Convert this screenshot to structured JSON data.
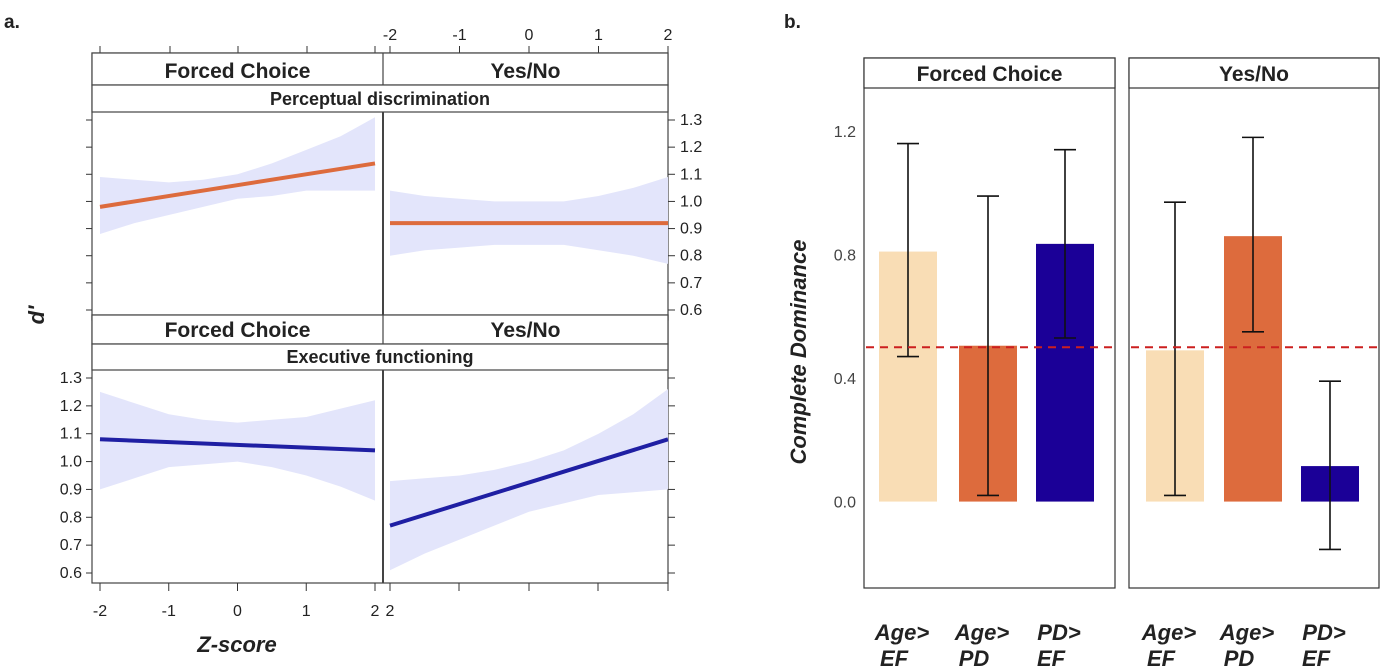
{
  "colors": {
    "orange": "#dd6b3d",
    "navy": "#1f1fa3",
    "navy_bar": "#1b0097",
    "peach": "#f9ddb5",
    "ci_fill": "#e3e5fb",
    "dashed": "#cc1f1f"
  },
  "chart_data": [
    {
      "panel_label": "a.",
      "type": "line",
      "ylabel": "d'",
      "xlabel": "Z-score",
      "x_ticks": [
        "-2",
        "-1",
        "0",
        "1",
        "2"
      ],
      "y_ticks": [
        "0.6",
        "0.7",
        "0.8",
        "0.9",
        "1.0",
        "1.1",
        "1.2",
        "1.3"
      ],
      "xlim": [
        -2,
        2
      ],
      "ylim": [
        0.6,
        1.3
      ],
      "facets": [
        {
          "name": "Forced Choice",
          "group": "Perceptual discrimination",
          "color": "orange",
          "x": [
            -2,
            2
          ],
          "y": [
            0.98,
            1.14
          ],
          "ci_upper": [
            1.09,
            1.08,
            1.07,
            1.08,
            1.1,
            1.14,
            1.19,
            1.24,
            1.31
          ],
          "ci_lower": [
            0.88,
            0.92,
            0.95,
            0.98,
            1.01,
            1.02,
            1.04,
            1.04,
            1.04
          ]
        },
        {
          "name": "Yes/No",
          "group": "Perceptual discrimination",
          "color": "orange",
          "x": [
            -2,
            2
          ],
          "y": [
            0.92,
            0.92
          ],
          "ci_upper": [
            1.04,
            1.02,
            1.01,
            1.0,
            1.0,
            1.0,
            1.02,
            1.05,
            1.09
          ],
          "ci_lower": [
            0.8,
            0.82,
            0.83,
            0.84,
            0.84,
            0.84,
            0.82,
            0.8,
            0.77
          ]
        },
        {
          "name": "Forced Choice",
          "group": "Executive functioning",
          "color": "navy",
          "x": [
            -2,
            2
          ],
          "y": [
            1.08,
            1.04
          ],
          "ci_upper": [
            1.25,
            1.21,
            1.17,
            1.15,
            1.14,
            1.15,
            1.16,
            1.19,
            1.22
          ],
          "ci_lower": [
            0.9,
            0.94,
            0.98,
            0.99,
            1.0,
            0.98,
            0.95,
            0.91,
            0.86
          ]
        },
        {
          "name": "Yes/No",
          "group": "Executive functioning",
          "color": "navy",
          "x": [
            -2,
            2
          ],
          "y": [
            0.77,
            1.08
          ],
          "ci_upper": [
            0.93,
            0.94,
            0.95,
            0.97,
            1.0,
            1.04,
            1.1,
            1.17,
            1.26
          ],
          "ci_lower": [
            0.61,
            0.67,
            0.72,
            0.77,
            0.82,
            0.85,
            0.88,
            0.89,
            0.9
          ]
        }
      ]
    },
    {
      "panel_label": "b.",
      "type": "bar",
      "ylabel": "Complete Dominance",
      "y_ticks": [
        "0.0",
        "0.4",
        "0.8",
        "1.2"
      ],
      "ylim": [
        -0.28,
        1.34
      ],
      "reference_line": 0.5,
      "facets": [
        {
          "name": "Forced Choice",
          "categories": [
            [
              "Age>",
              "EF"
            ],
            [
              "Age>",
              "PD"
            ],
            [
              "PD>",
              "EF"
            ]
          ],
          "values": [
            0.81,
            0.505,
            0.835
          ],
          "err_low": [
            0.47,
            0.02,
            0.53
          ],
          "err_high": [
            1.16,
            0.99,
            1.14
          ],
          "colors": [
            "peach",
            "orange",
            "navy_bar"
          ]
        },
        {
          "name": "Yes/No",
          "categories": [
            [
              "Age>",
              "EF"
            ],
            [
              "Age>",
              "PD"
            ],
            [
              "PD>",
              "EF"
            ]
          ],
          "values": [
            0.49,
            0.86,
            0.115
          ],
          "err_low": [
            0.02,
            0.55,
            -0.155
          ],
          "err_high": [
            0.97,
            1.18,
            0.39
          ],
          "colors": [
            "peach",
            "orange",
            "navy_bar"
          ]
        }
      ]
    }
  ]
}
